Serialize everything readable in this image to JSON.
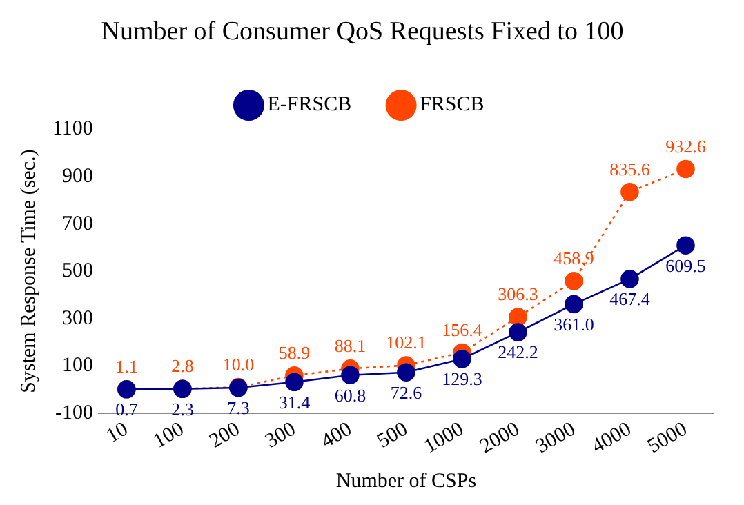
{
  "chart_data": {
    "type": "line",
    "title": "Number of Consumer QoS Requests Fixed to 100",
    "xlabel": "Number of CSPs",
    "ylabel": "System Response Time (sec.)",
    "categories": [
      "10",
      "100",
      "200",
      "300",
      "400",
      "500",
      "1000",
      "2000",
      "3000",
      "4000",
      "5000"
    ],
    "series": [
      {
        "name": "E-FRSCB",
        "color": "#00008b",
        "line_style": "solid",
        "values": [
          0.7,
          2.3,
          7.3,
          31.4,
          60.8,
          72.6,
          129.3,
          242.2,
          361.0,
          467.4,
          609.5
        ],
        "value_labels": [
          "0.7",
          "2.3",
          "7.3",
          "31.4",
          "60.8",
          "72.6",
          "129.3",
          "242.2",
          "361.0",
          "467.4",
          "609.5"
        ]
      },
      {
        "name": "FRSCB",
        "color": "#ff4500",
        "line_style": "dotted",
        "values": [
          1.1,
          2.8,
          10.0,
          58.9,
          88.1,
          102.1,
          156.4,
          306.3,
          458.9,
          835.6,
          932.6
        ],
        "value_labels": [
          "1.1",
          "2.8",
          "10.0",
          "58.9",
          "88.1",
          "102.1",
          "156.4",
          "306.3",
          "458.9",
          "835.6",
          "932.6"
        ]
      }
    ],
    "ylim": [
      -100,
      1100
    ],
    "yticks": [
      -100,
      100,
      300,
      500,
      700,
      900,
      1100
    ],
    "grid": false,
    "legend": "top",
    "marker": "circle"
  }
}
